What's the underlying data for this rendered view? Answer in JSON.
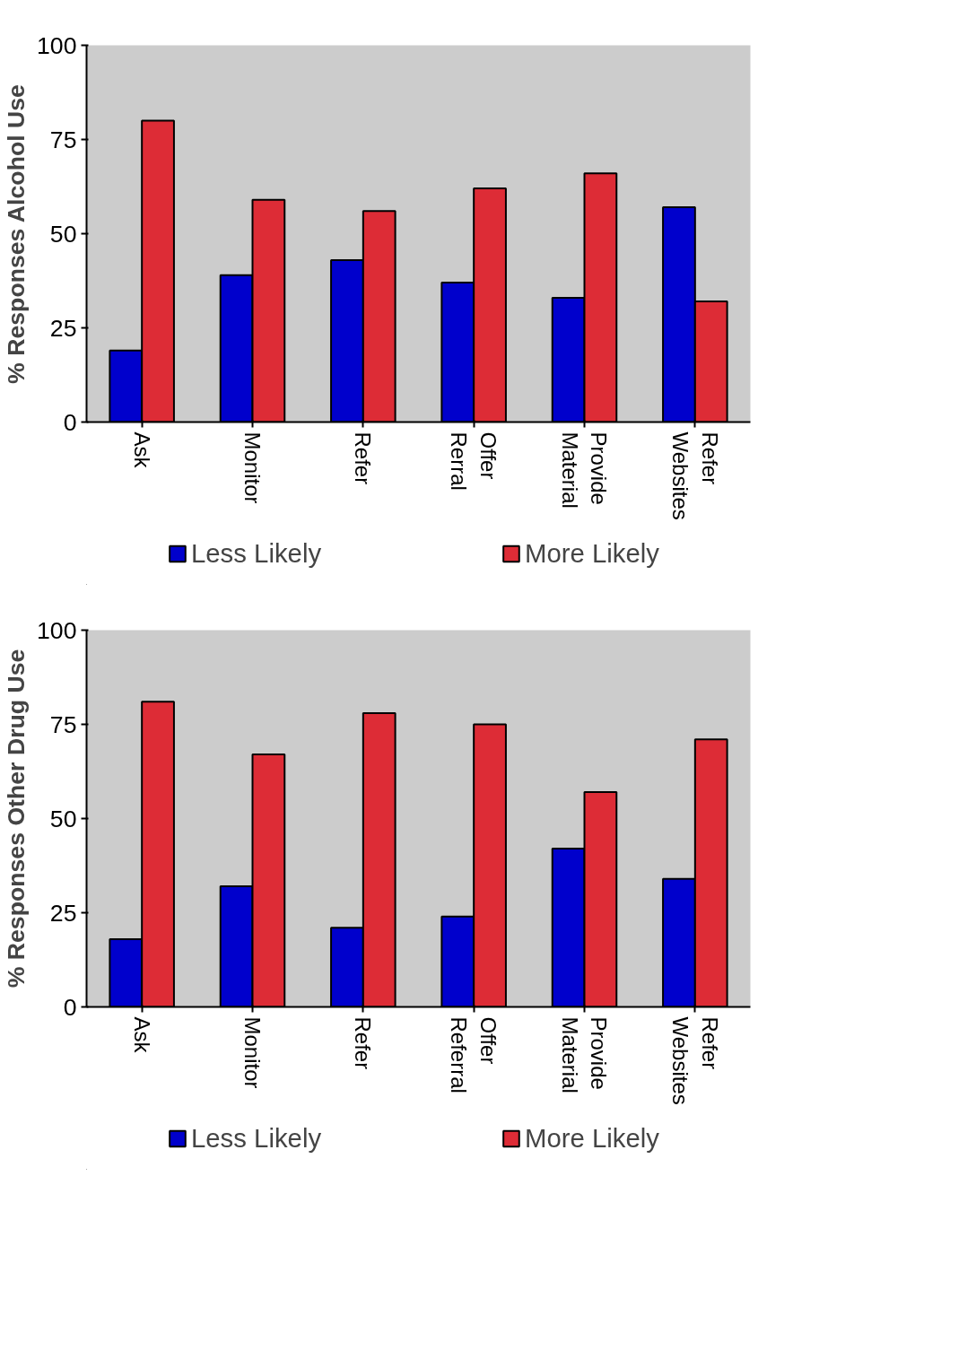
{
  "chart_data": [
    {
      "type": "bar",
      "ylabel": "% Responses Alcohol Use",
      "categories": [
        "Ask",
        "Monitor",
        "Refer",
        "Offer\nRerral",
        "Provide\nMaterial",
        "Refer\nWebsites"
      ],
      "series": [
        {
          "name": "Less Likely",
          "color": "#0000cc",
          "values": [
            19,
            39,
            43,
            37,
            33,
            57
          ]
        },
        {
          "name": "More Likely",
          "color": "#dd2c36",
          "values": [
            80,
            59,
            56,
            62,
            66,
            32
          ]
        }
      ],
      "ylim": [
        0,
        100
      ],
      "yticks": [
        0,
        25,
        50,
        75,
        100
      ],
      "legend": "bottom"
    },
    {
      "type": "bar",
      "ylabel": "% Responses Other Drug Use",
      "categories": [
        "Ask",
        "Monitor",
        "Refer",
        "Offer\nReferral",
        "Provide\nMaterial",
        "Refer\nWebsites"
      ],
      "series": [
        {
          "name": "Less Likely",
          "color": "#0000cc",
          "values": [
            18,
            32,
            21,
            24,
            42,
            34
          ]
        },
        {
          "name": "More Likely",
          "color": "#dd2c36",
          "values": [
            81,
            67,
            78,
            75,
            57,
            71
          ]
        }
      ],
      "ylim": [
        0,
        100
      ],
      "yticks": [
        0,
        25,
        50,
        75,
        100
      ],
      "legend": "bottom"
    }
  ]
}
